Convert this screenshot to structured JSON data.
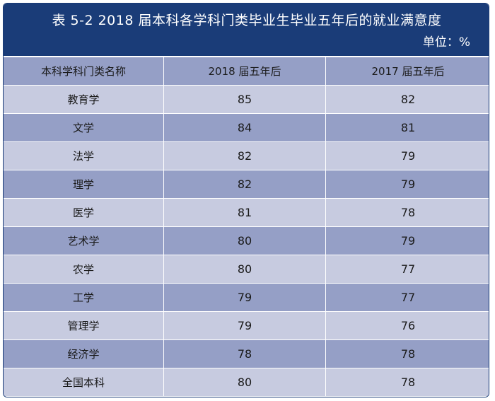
{
  "chart_data": {
    "type": "table",
    "title": "表 5-2   2018 届本科各学科门类毕业生毕业五年后的就业满意度",
    "unit": "单位：%",
    "columns": [
      "本科学科门类名称",
      "2018 届五年后",
      "2017 届五年后"
    ],
    "rows": [
      {
        "name": "教育学",
        "v2018": "85",
        "v2017": "82"
      },
      {
        "name": "文学",
        "v2018": "84",
        "v2017": "81"
      },
      {
        "name": "法学",
        "v2018": "82",
        "v2017": "79"
      },
      {
        "name": "理学",
        "v2018": "82",
        "v2017": "79"
      },
      {
        "name": "医学",
        "v2018": "81",
        "v2017": "78"
      },
      {
        "name": "艺术学",
        "v2018": "80",
        "v2017": "79"
      },
      {
        "name": "农学",
        "v2018": "80",
        "v2017": "77"
      },
      {
        "name": "工学",
        "v2018": "79",
        "v2017": "77"
      },
      {
        "name": "管理学",
        "v2018": "79",
        "v2017": "76"
      },
      {
        "name": "经济学",
        "v2018": "78",
        "v2017": "78"
      },
      {
        "name": "全国本科",
        "v2018": "80",
        "v2017": "78"
      }
    ]
  },
  "colors": {
    "header_bg": "#1a3c78",
    "row_light": "#c7cbe0",
    "row_dark": "#959fc6"
  }
}
